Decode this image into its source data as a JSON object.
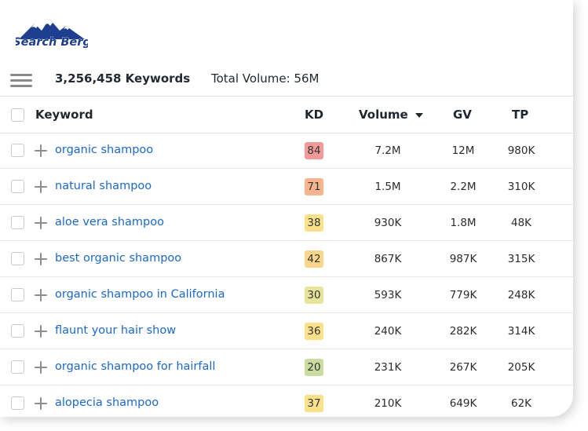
{
  "brand": {
    "logo_text": "Search Berg",
    "mountain_color": "#1e3f8f",
    "snow_color": "#ffffff"
  },
  "summary": {
    "keywords_count": "3,256,458 Keywords",
    "total_volume": "Total Volume: 56M"
  },
  "table": {
    "columns": {
      "keyword": "Keyword",
      "kd": "KD",
      "volume": "Volume",
      "gv": "GV",
      "tp": "TP"
    },
    "sort_column": "Volume",
    "sort_direction": "descending",
    "rows": [
      {
        "keyword": "organic shampoo",
        "kd": "84",
        "kd_color": "#f29a98",
        "volume": "7.2M",
        "gv": "12M",
        "tp": "980K"
      },
      {
        "keyword": "natural shampoo",
        "kd": "71",
        "kd_color": "#f7b48f",
        "volume": "1.5M",
        "gv": "2.2M",
        "tp": "310K"
      },
      {
        "keyword": "aloe vera shampoo",
        "kd": "38",
        "kd_color": "#fbe08a",
        "volume": "930K",
        "gv": "1.8M",
        "tp": "48K"
      },
      {
        "keyword": "best organic shampoo",
        "kd": "42",
        "kd_color": "#fbd68a",
        "volume": "867K",
        "gv": "987K",
        "tp": "315K"
      },
      {
        "keyword": "organic shampoo in California",
        "kd": "30",
        "kd_color": "#e6e59a",
        "volume": "593K",
        "gv": "779K",
        "tp": "248K"
      },
      {
        "keyword": "flaunt your hair show",
        "kd": "36",
        "kd_color": "#fbe08a",
        "volume": "240K",
        "gv": "282K",
        "tp": "314K"
      },
      {
        "keyword": "organic shampoo for hairfall",
        "kd": "20",
        "kd_color": "#c9dc9e",
        "volume": "231K",
        "gv": "267K",
        "tp": "205K"
      },
      {
        "keyword": "alopecia shampoo",
        "kd": "37",
        "kd_color": "#fbe08a",
        "volume": "210K",
        "gv": "649K",
        "tp": "62K"
      }
    ]
  },
  "icons": {
    "menu": "hamburger-icon",
    "add": "plus-icon",
    "sort": "caret-down-icon"
  }
}
